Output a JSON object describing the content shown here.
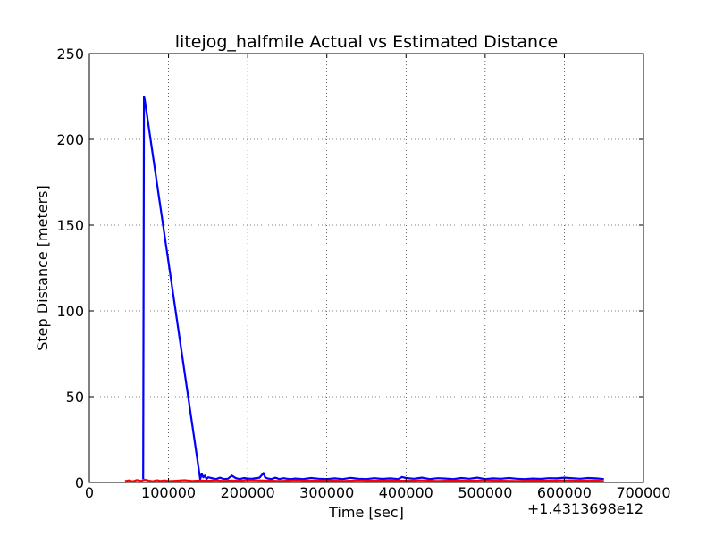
{
  "chart_data": {
    "type": "line",
    "title": "litejog_halfmile Actual vs Estimated Distance",
    "xlabel": "Time [sec]",
    "ylabel": "Step Distance [meters]",
    "x_offset_label": "+1.4313698e12",
    "xlim": [
      0,
      700000
    ],
    "ylim": [
      0,
      250
    ],
    "xticks": [
      0,
      100000,
      200000,
      300000,
      400000,
      500000,
      600000,
      700000
    ],
    "yticks": [
      0,
      50,
      100,
      150,
      200,
      250
    ],
    "grid": true,
    "legend": "none",
    "series": [
      {
        "color": "#0000ff",
        "x": [
          68000,
          69000,
          70000,
          140000,
          142000,
          144000,
          146000,
          148000,
          150000,
          155000,
          160000,
          165000,
          170000,
          175000,
          180000,
          185000,
          190000,
          195000,
          200000,
          205000,
          210000,
          215000,
          220000,
          222000,
          225000,
          230000,
          235000,
          240000,
          245000,
          250000,
          255000,
          260000,
          270000,
          280000,
          290000,
          300000,
          310000,
          320000,
          330000,
          340000,
          350000,
          360000,
          370000,
          380000,
          390000,
          395000,
          400000,
          410000,
          420000,
          430000,
          440000,
          450000,
          460000,
          470000,
          480000,
          490000,
          500000,
          510000,
          520000,
          530000,
          540000,
          550000,
          560000,
          570000,
          580000,
          590000,
          600000,
          610000,
          620000,
          630000,
          640000,
          650000
        ],
        "y": [
          2,
          225,
          223,
          2,
          5,
          3,
          4,
          2,
          3,
          2.5,
          2,
          2.8,
          2,
          2.2,
          4,
          2.5,
          2,
          2.6,
          2.3,
          2.2,
          2.5,
          2.8,
          5.5,
          3,
          2.4,
          2,
          2.8,
          2,
          2.5,
          2.2,
          2,
          2.3,
          2,
          2.6,
          2.2,
          2,
          2.4,
          2,
          2.7,
          2.2,
          2,
          2.5,
          2.1,
          2.4,
          2,
          3.2,
          2.6,
          2.2,
          2.8,
          2,
          2.5,
          2.3,
          2,
          2.6,
          2.2,
          2.8,
          2,
          2.4,
          2.2,
          2.6,
          2.2,
          2,
          2.3,
          2.1,
          2.5,
          2.4,
          2.8,
          2.5,
          2.2,
          2.6,
          2.4,
          2
        ]
      },
      {
        "color": "#ff0000",
        "x": [
          45000,
          50000,
          55000,
          60000,
          65000,
          70000,
          75000,
          80000,
          85000,
          90000,
          95000,
          100000,
          110000,
          120000,
          130000,
          140000,
          150000,
          160000,
          170000,
          180000,
          190000,
          200000,
          220000,
          240000,
          260000,
          280000,
          300000,
          320000,
          340000,
          360000,
          380000,
          400000,
          420000,
          440000,
          460000,
          480000,
          500000,
          520000,
          540000,
          560000,
          580000,
          600000,
          620000,
          640000,
          650000
        ],
        "y": [
          0.8,
          1.2,
          0.6,
          1.4,
          0.9,
          1.6,
          1.1,
          0.7,
          1.3,
          0.9,
          1.2,
          0.8,
          1.0,
          1.3,
          0.9,
          1.1,
          1.0,
          1.2,
          0.9,
          1.1,
          1.0,
          1.3,
          1.1,
          0.9,
          1.2,
          1.0,
          1.1,
          0.9,
          1.2,
          1.0,
          1.1,
          1.0,
          1.2,
          0.9,
          1.1,
          1.0,
          1.2,
          1.0,
          0.9,
          1.1,
          1.0,
          1.2,
          1.0,
          1.1,
          0.8
        ]
      }
    ]
  }
}
